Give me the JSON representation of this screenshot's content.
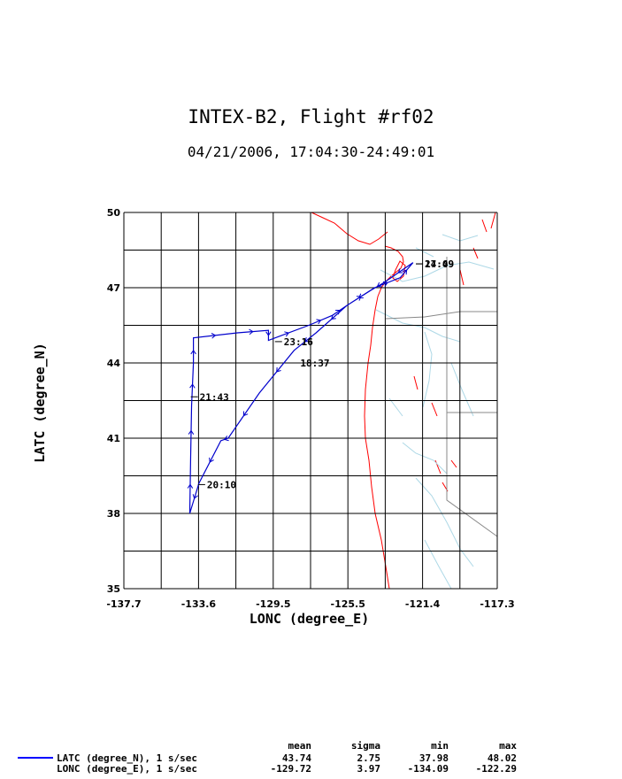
{
  "title": "INTEX-B2, Flight #rf02",
  "subtitle": "04/21/2006, 17:04:30-24:49:01",
  "chart_data": {
    "type": "line",
    "xlabel": "LONC (degree_E)",
    "ylabel": "LATC (degree_N)",
    "xlim": [
      -137.7,
      -117.3
    ],
    "ylim": [
      35,
      50
    ],
    "x_ticks": [
      "-137.7",
      "-133.6",
      "-129.5",
      "-125.5",
      "-121.4",
      "-117.3"
    ],
    "y_ticks": [
      "50",
      "47",
      "44",
      "41",
      "38",
      "35"
    ],
    "grid": true,
    "series": [
      {
        "name": "LATC (degree_N), 1 s/sec",
        "color": "#0000cc",
        "x": [
          -121.9,
          -123.5,
          -124.2,
          -125.5,
          -127.2,
          -128.4,
          -130.3,
          -132.0,
          -132.4,
          -133.6,
          -134.1,
          -134.05,
          -134.0,
          -133.9,
          -133.9,
          -131.5,
          -129.8,
          -129.8,
          -127.6,
          -126.3,
          -125.5,
          -124.0,
          -122.6,
          -121.9
        ],
        "y": [
          48.0,
          47.2,
          46.9,
          46.3,
          45.2,
          44.5,
          42.8,
          41.0,
          40.9,
          39.2,
          38.0,
          40.3,
          42.3,
          44.0,
          45.0,
          45.2,
          45.3,
          44.9,
          45.5,
          45.9,
          46.3,
          47.0,
          47.4,
          48.0
        ]
      }
    ],
    "annotations": [
      {
        "text": "18:37",
        "x": -128.4,
        "y": 44.0
      },
      {
        "text": "23:16",
        "x": -129.3,
        "y": 44.85
      },
      {
        "text": "21:43",
        "x": -133.9,
        "y": 42.65
      },
      {
        "text": "20:10",
        "x": -133.5,
        "y": 39.15
      },
      {
        "text": "17:09",
        "x": -121.6,
        "y": 47.95
      },
      {
        "text": "24:49",
        "x": -121.6,
        "y": 47.95
      }
    ],
    "map_overlay": {
      "coastline_color": "#ff0000",
      "rivers_color": "#add8e6",
      "borders_color": "#888888"
    }
  },
  "legend": {
    "headers": [
      "mean",
      "sigma",
      "min",
      "max"
    ],
    "rows": [
      {
        "label": "LATC (degree_N), 1 s/sec",
        "values": [
          "43.74",
          "2.75",
          "37.98",
          "48.02"
        ]
      },
      {
        "label": "LONC (degree_E), 1 s/sec",
        "values": [
          "-129.72",
          "3.97",
          "-134.09",
          "-122.29"
        ]
      }
    ]
  }
}
